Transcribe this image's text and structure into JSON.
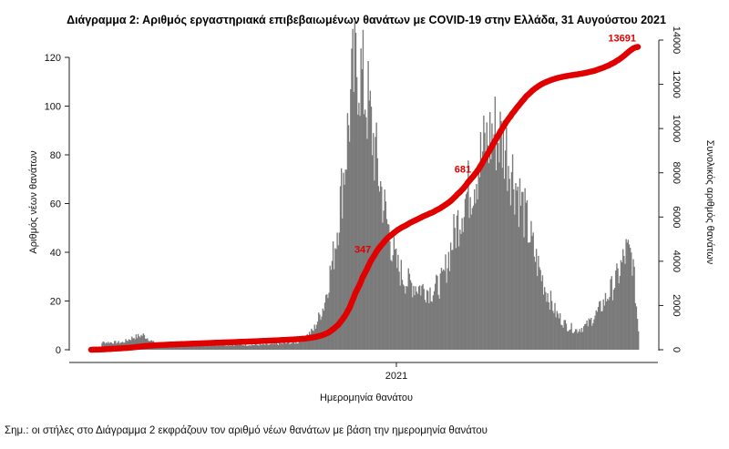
{
  "chart_data": {
    "type": "bar",
    "title": "Διάγραμμα 2: Αριθμός εργαστηριακά επιβεβαιωμένων θανάτων με COVID-19 στην Ελλάδα, 31 Αυγούστου 2021",
    "xlabel": "Ημερομηνία θανάτου",
    "ylabel": "Αριθμός νέων θανάτων",
    "y2label": "Συνολικός αριθμός θανάτων",
    "x_tick_labels": [
      "2021"
    ],
    "ylim": [
      0,
      130
    ],
    "yticks": [
      0,
      20,
      40,
      60,
      80,
      100,
      120
    ],
    "y2lim": [
      0,
      14500
    ],
    "y2ticks": [
      0,
      2000,
      4000,
      6000,
      8000,
      10000,
      12000,
      14000
    ],
    "grid": false,
    "legend": "none",
    "note": "Σημ.: οι στήλες στο Διάγραμμα 2 εκφράζουν τον αριθμό νέων θανάτων με βάση την ημερομηνία θανάτου",
    "bar_color": "#7a7a7a",
    "cumulative_color": "#e00000",
    "daily_profile": [
      [
        0,
        1
      ],
      [
        9,
        1
      ],
      [
        10,
        3
      ],
      [
        30,
        3
      ],
      [
        40,
        5
      ],
      [
        50,
        6
      ],
      [
        60,
        3
      ],
      [
        80,
        2
      ],
      [
        120,
        2
      ],
      [
        170,
        2
      ],
      [
        200,
        3
      ],
      [
        215,
        8
      ],
      [
        225,
        18
      ],
      [
        235,
        40
      ],
      [
        245,
        75
      ],
      [
        253,
        110
      ],
      [
        258,
        118
      ],
      [
        268,
        100
      ],
      [
        275,
        80
      ],
      [
        285,
        55
      ],
      [
        295,
        35
      ],
      [
        305,
        28
      ],
      [
        315,
        26
      ],
      [
        330,
        24
      ],
      [
        340,
        28
      ],
      [
        350,
        45
      ],
      [
        360,
        60
      ],
      [
        370,
        70
      ],
      [
        380,
        82
      ],
      [
        390,
        90
      ],
      [
        400,
        85
      ],
      [
        410,
        70
      ],
      [
        420,
        55
      ],
      [
        430,
        38
      ],
      [
        440,
        25
      ],
      [
        450,
        15
      ],
      [
        460,
        10
      ],
      [
        470,
        8
      ],
      [
        480,
        10
      ],
      [
        490,
        15
      ],
      [
        500,
        22
      ],
      [
        510,
        30
      ],
      [
        518,
        40
      ],
      [
        524,
        38
      ],
      [
        530,
        8
      ]
    ],
    "cumulative": {
      "name": "",
      "final_value": 13691,
      "labels": [
        {
          "x": 275,
          "text": "347"
        },
        {
          "x": 372,
          "text": "681"
        },
        {
          "x": 530,
          "text": "13691"
        }
      ]
    }
  }
}
